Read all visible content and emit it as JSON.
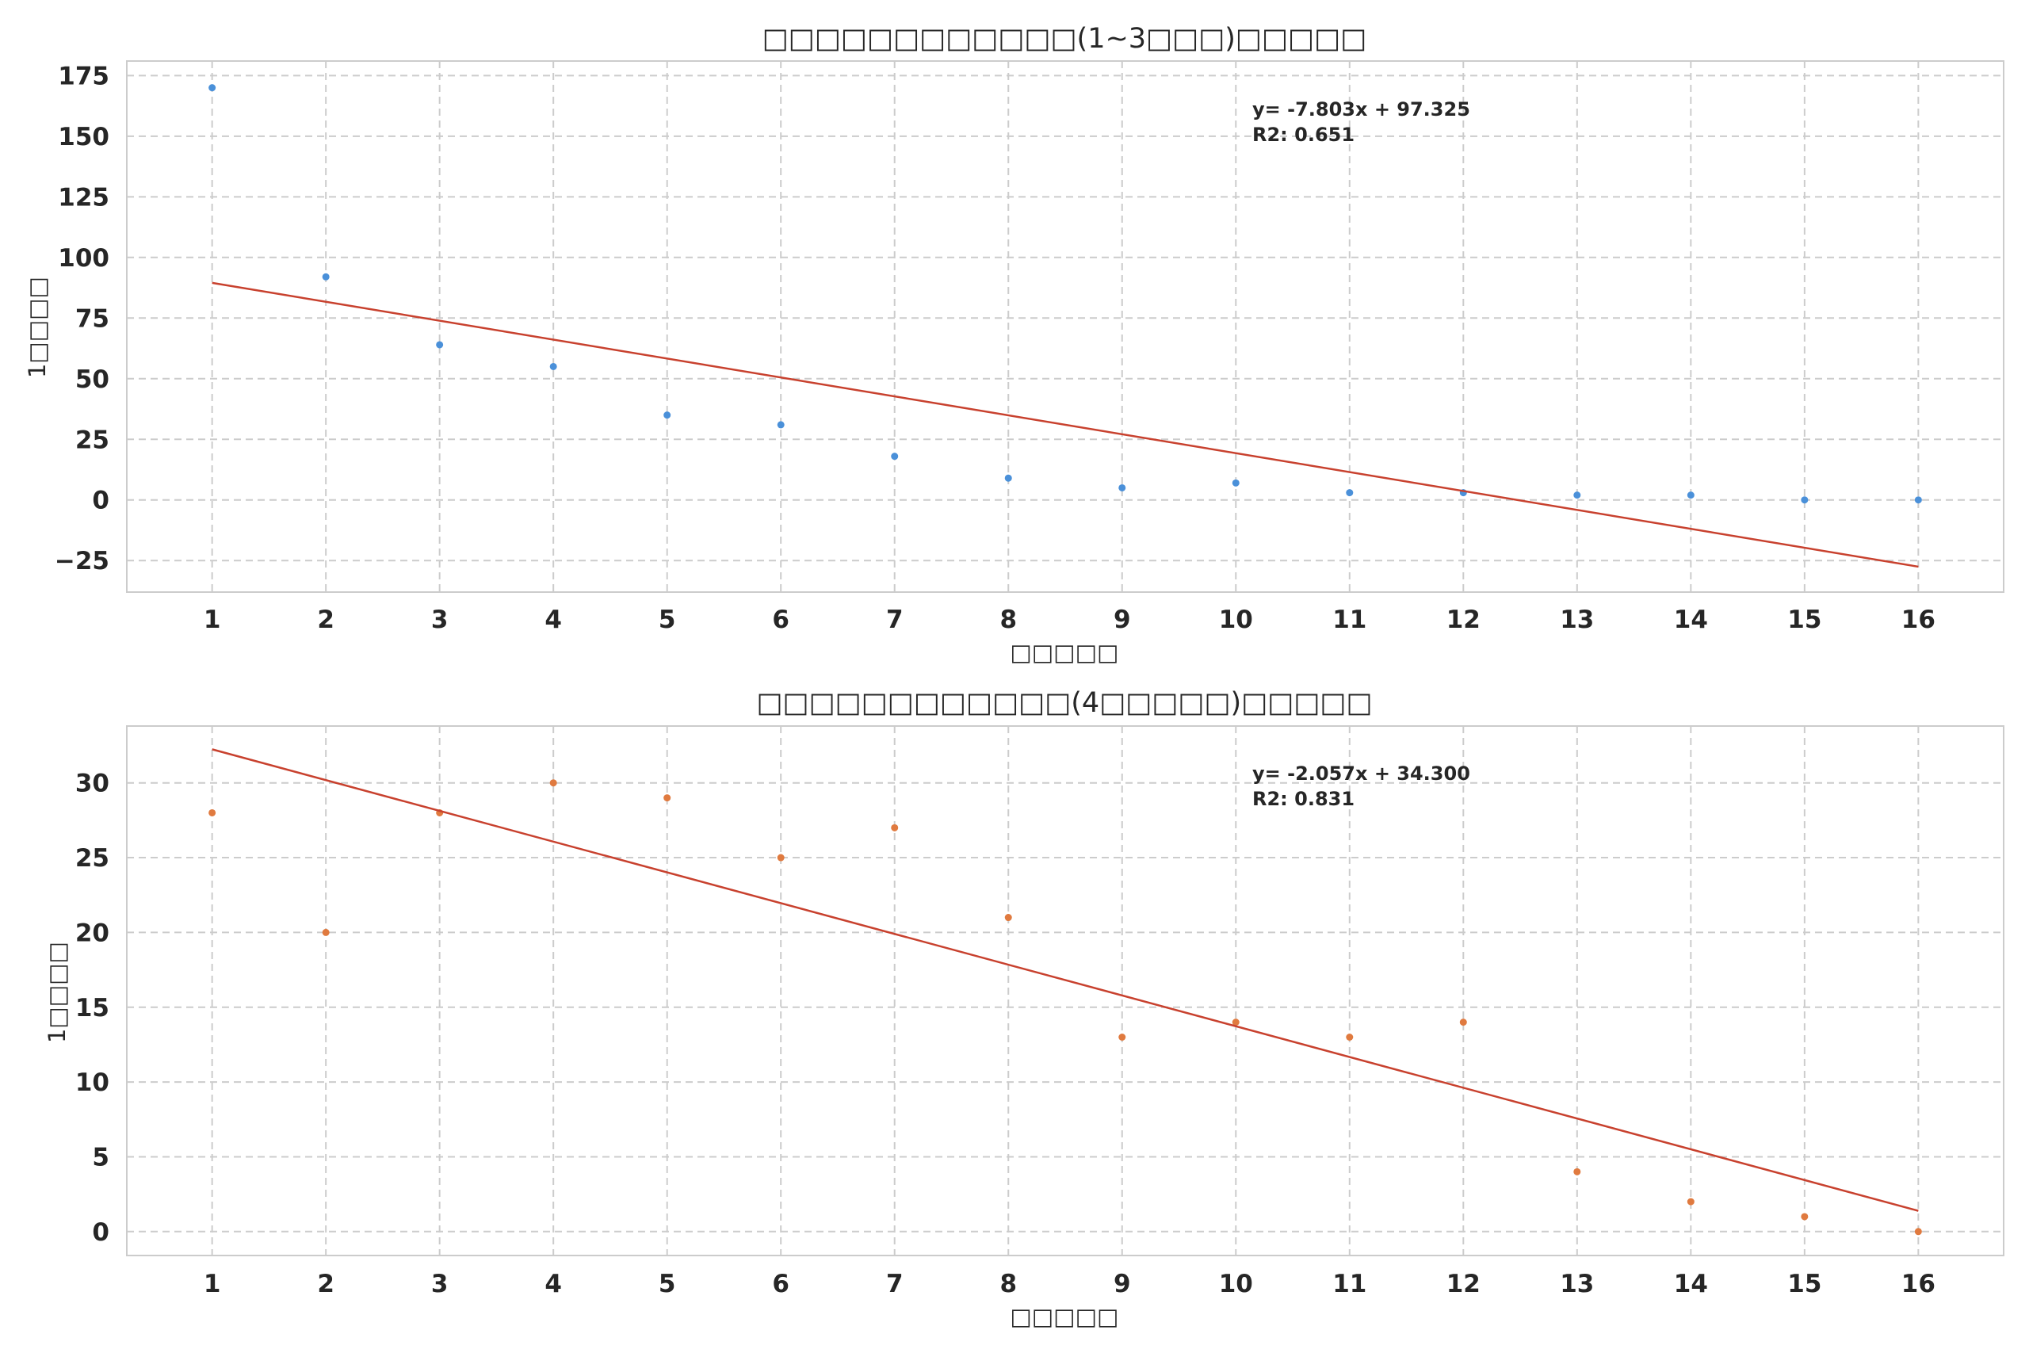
{
  "chart_data": [
    {
      "type": "scatter",
      "title": "□□□□□□□□□□□□(1~3□□□)□□□□□",
      "xlabel": "□□□□□",
      "ylabel": "1□□□□",
      "x": [
        1,
        2,
        3,
        4,
        5,
        6,
        7,
        8,
        9,
        10,
        11,
        12,
        13,
        14,
        15,
        16
      ],
      "y": [
        170,
        92,
        64,
        55,
        35,
        31,
        18,
        9,
        5,
        7,
        3,
        3,
        2,
        2,
        0,
        0
      ],
      "xticks": [
        1,
        2,
        3,
        4,
        5,
        6,
        7,
        8,
        9,
        10,
        11,
        12,
        13,
        14,
        15,
        16
      ],
      "yticks": [
        -25,
        0,
        25,
        50,
        75,
        100,
        125,
        150,
        175
      ],
      "ytick_labels": [
        "−25",
        "0",
        "25",
        "50",
        "75",
        "100",
        "125",
        "150",
        "175"
      ],
      "xlim": [
        0.25,
        16.75
      ],
      "ylim": [
        -38,
        181
      ],
      "grid": true,
      "point_color": "#4a90d9",
      "trendline": {
        "slope": -7.803,
        "intercept": 97.325,
        "color": "#c8412e"
      },
      "equation_text": "y= -7.803x + 97.325",
      "r2_text": "R2: 0.651"
    },
    {
      "type": "scatter",
      "title": "□□□□□□□□□□□□(4□□□□□)□□□□□",
      "xlabel": "□□□□□",
      "ylabel": "1□□□□",
      "x": [
        1,
        2,
        3,
        4,
        5,
        6,
        7,
        8,
        9,
        10,
        11,
        12,
        13,
        14,
        15,
        16
      ],
      "y": [
        28,
        20,
        28,
        30,
        29,
        25,
        27,
        21,
        13,
        14,
        13,
        14,
        4,
        2,
        1,
        0
      ],
      "xticks": [
        1,
        2,
        3,
        4,
        5,
        6,
        7,
        8,
        9,
        10,
        11,
        12,
        13,
        14,
        15,
        16
      ],
      "yticks": [
        0,
        5,
        10,
        15,
        20,
        25,
        30
      ],
      "ytick_labels": [
        "0",
        "5",
        "10",
        "15",
        "20",
        "25",
        "30"
      ],
      "xlim": [
        0.25,
        16.75
      ],
      "ylim": [
        -1.6,
        33.8
      ],
      "grid": true,
      "point_color": "#e07a3f",
      "trendline": {
        "slope": -2.057,
        "intercept": 34.3,
        "color": "#c8412e"
      },
      "equation_text": "y= -2.057x + 34.300",
      "r2_text": "R2: 0.831"
    }
  ]
}
